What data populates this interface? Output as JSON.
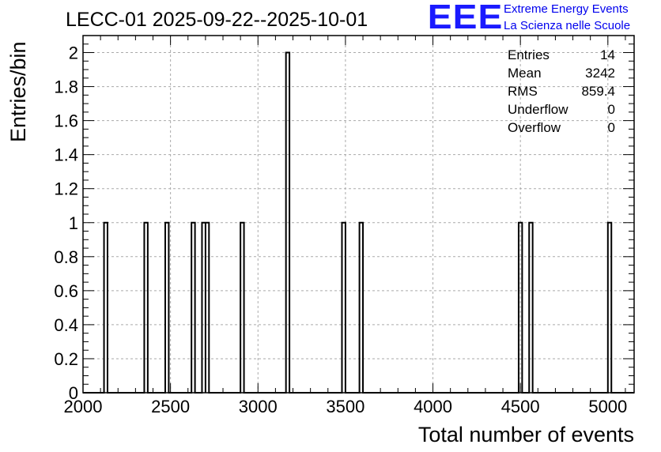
{
  "chart_data": {
    "type": "histogram",
    "title": "LECC-01 2025-09-22--2025-10-01",
    "xlabel": "Total number of events",
    "ylabel": "Entries/bin",
    "xlim": [
      2000,
      5150
    ],
    "ylim": [
      0,
      2.1
    ],
    "bin_width": 20,
    "grid": true,
    "x_ticks": [
      "2000",
      "2500",
      "3000",
      "3500",
      "4000",
      "4500",
      "5000"
    ],
    "x_tick_values": [
      2000,
      2500,
      3000,
      3500,
      4000,
      4500,
      5000
    ],
    "y_ticks": [
      "0",
      "0.2",
      "0.4",
      "0.6",
      "0.8",
      "1",
      "1.2",
      "1.4",
      "1.6",
      "1.8",
      "2"
    ],
    "y_tick_values": [
      0,
      0.2,
      0.4,
      0.6,
      0.8,
      1.0,
      1.2,
      1.4,
      1.6,
      1.8,
      2.0
    ],
    "bins": [
      {
        "low": 2120,
        "count": 1
      },
      {
        "low": 2350,
        "count": 1
      },
      {
        "low": 2470,
        "count": 1
      },
      {
        "low": 2620,
        "count": 1
      },
      {
        "low": 2680,
        "count": 1
      },
      {
        "low": 2700,
        "count": 1
      },
      {
        "low": 2900,
        "count": 1
      },
      {
        "low": 3160,
        "count": 2
      },
      {
        "low": 3480,
        "count": 1
      },
      {
        "low": 3580,
        "count": 1
      },
      {
        "low": 4490,
        "count": 1
      },
      {
        "low": 4550,
        "count": 1
      },
      {
        "low": 5000,
        "count": 1
      }
    ]
  },
  "branding": {
    "logo": "EEE",
    "line1": "Extreme Energy Events",
    "line2": "La Scienza nelle Scuole"
  },
  "stats": [
    {
      "label": "Entries",
      "value": "14"
    },
    {
      "label": "Mean",
      "value": "3242"
    },
    {
      "label": "RMS",
      "value": "859.4"
    },
    {
      "label": "Underflow",
      "value": "0"
    },
    {
      "label": "Overflow",
      "value": "0"
    }
  ]
}
